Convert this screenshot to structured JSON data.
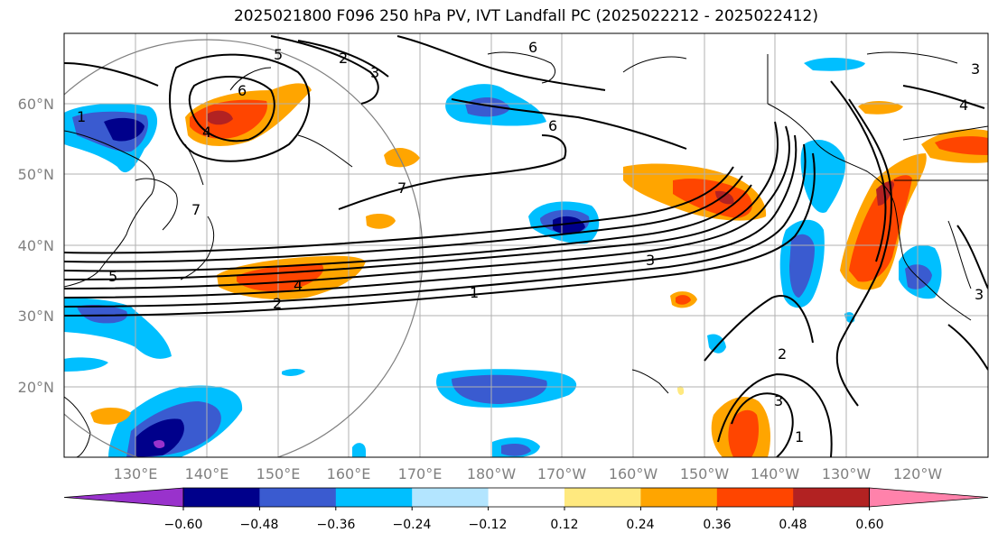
{
  "title": "2025021800 F096 250 hPa PV, IVT Landfall PC (2025022212 - 2025022412)",
  "map": {
    "lon_ticks": [
      "130°E",
      "140°E",
      "150°E",
      "160°E",
      "170°E",
      "180°W",
      "170°W",
      "160°W",
      "150°W",
      "140°W",
      "130°W",
      "120°W"
    ],
    "lat_ticks": [
      "20°N",
      "30°N",
      "40°N",
      "50°N",
      "60°N"
    ],
    "contour_labels": [
      "1",
      "2",
      "3",
      "4",
      "5",
      "6",
      "7",
      "1",
      "2",
      "3",
      "4",
      "5",
      "6",
      "7",
      "1",
      "2",
      "3",
      "3",
      "4",
      "3",
      "6"
    ],
    "grid": true
  },
  "colorbar": {
    "tick_labels": [
      "−0.60",
      "−0.48",
      "−0.36",
      "−0.24",
      "−0.12",
      "0.12",
      "0.24",
      "0.36",
      "0.48",
      "0.60"
    ],
    "levels": [
      -0.6,
      -0.48,
      -0.36,
      -0.24,
      -0.12,
      0.12,
      0.24,
      0.36,
      0.48,
      0.6
    ],
    "colors": {
      "under": "#9932cc",
      "bins": [
        "#00008b",
        "#3a5bd0",
        "#00bfff",
        "#b3e5ff",
        "#ffffff",
        "#ffe97f",
        "#ffa500",
        "#ff4500",
        "#b22222"
      ],
      "over": "#ff82ab"
    },
    "extend": "both"
  }
}
